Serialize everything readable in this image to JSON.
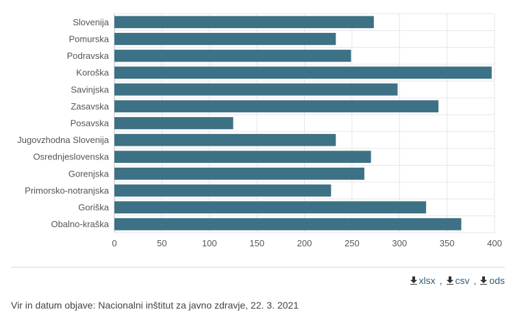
{
  "chart_data": {
    "type": "bar",
    "orientation": "horizontal",
    "categories": [
      "Slovenija",
      "Pomurska",
      "Podravska",
      "Koroška",
      "Savinjska",
      "Zasavska",
      "Posavska",
      "Jugovzhodna Slovenija",
      "Osrednjeslovenska",
      "Gorenjska",
      "Primorsko-notranjska",
      "Goriška",
      "Obalno-kraška"
    ],
    "values": [
      273,
      233,
      249,
      397,
      298,
      341,
      125,
      233,
      270,
      263,
      228,
      328,
      365
    ],
    "xlim": [
      0,
      400
    ],
    "x_ticks": [
      "0",
      "50",
      "100",
      "150",
      "200",
      "250",
      "300",
      "350",
      "400"
    ],
    "grid": true,
    "bar_color": "#3d7185"
  },
  "downloads": {
    "xlsx": "xlsx",
    "csv": "csv",
    "ods": "ods",
    "separator": ","
  },
  "source_text": "Vir in datum objave: Nacionalni inštitut za javno zdravje, 22. 3. 2021",
  "colors": {
    "link": "#2f5f78",
    "grid": "#e6e6e6"
  }
}
